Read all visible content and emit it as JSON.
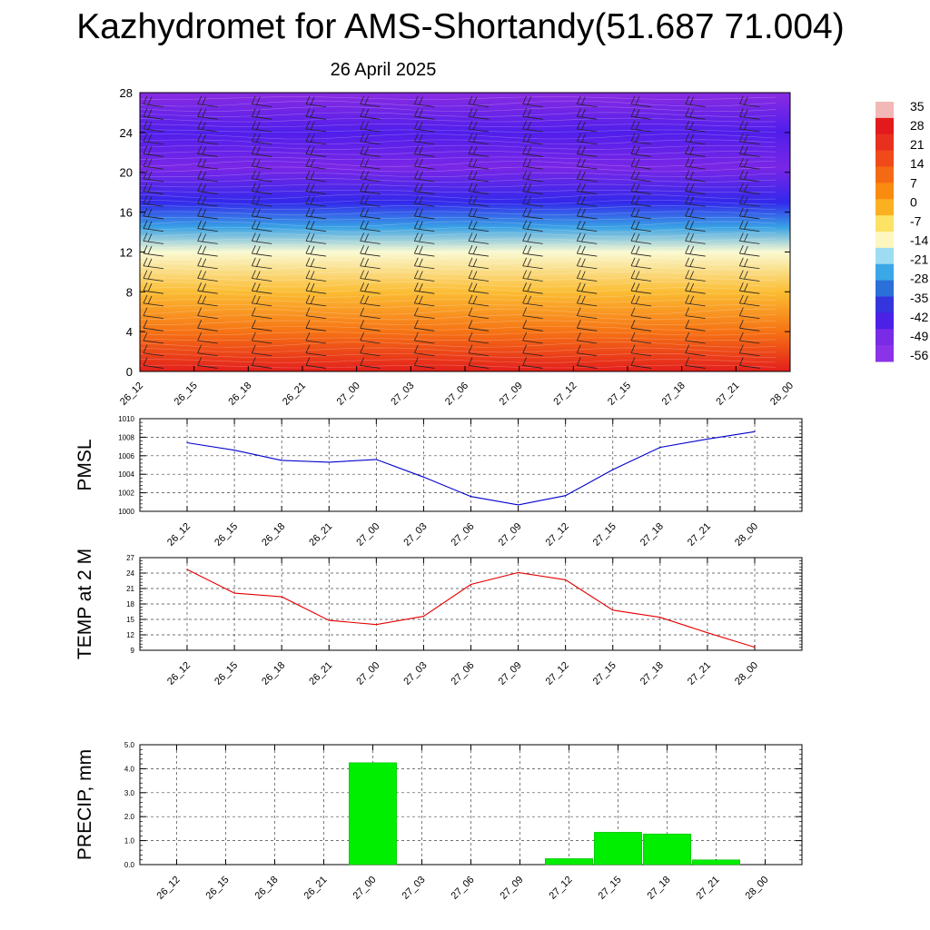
{
  "title": "Kazhydromet for AMS-Shortandy(51.687 71.004)",
  "date": "26 April 2025",
  "colorbar": {
    "labels": [
      "35",
      "28",
      "21",
      "14",
      "7",
      "0",
      "-7",
      "-14",
      "-21",
      "-28",
      "-35",
      "-42",
      "-49",
      "-56"
    ],
    "colors": [
      "#f2b8b8",
      "#e31a1c",
      "#e8301e",
      "#f04a1a",
      "#f46a14",
      "#f98b10",
      "#fbb022",
      "#fce265",
      "#fdf7bf",
      "#9ddcf2",
      "#3aa7e6",
      "#2b6fd8",
      "#3535dd",
      "#4b21e6",
      "#7a2be6",
      "#8a33e8"
    ]
  },
  "chart_data": [
    {
      "type": "heatmap",
      "title": "",
      "xlabel": "",
      "ylabel": "",
      "x": [
        "26_12",
        "26_15",
        "26_18",
        "26_21",
        "27_00",
        "27_03",
        "27_06",
        "27_09",
        "27_12",
        "27_15",
        "27_18",
        "27_21",
        "28_00"
      ],
      "y_ticks": [
        0,
        4,
        8,
        12,
        16,
        20,
        24,
        28
      ],
      "ylim": [
        0,
        28
      ],
      "zlim": [
        -56,
        35
      ],
      "levels_color_order": [
        {
          "y": 0,
          "value": 28
        },
        {
          "y": 4,
          "value": 14
        },
        {
          "y": 8,
          "value": 2
        },
        {
          "y": 12,
          "value": -14
        },
        {
          "y": 14.5,
          "value": -30
        },
        {
          "y": 17,
          "value": -49
        },
        {
          "y": 20.5,
          "value": -56
        },
        {
          "y": 24,
          "value": -52
        },
        {
          "y": 28,
          "value": -60
        }
      ]
    },
    {
      "type": "line",
      "title": "",
      "ylabel": "PMSL",
      "xlabel": "",
      "x": [
        "26_12",
        "26_15",
        "26_18",
        "26_21",
        "27_00",
        "27_03",
        "27_06",
        "27_09",
        "27_12",
        "27_15",
        "27_18",
        "27_21",
        "28_00"
      ],
      "series": [
        {
          "values": [
            1007.4,
            1006.6,
            1005.5,
            1005.3,
            1005.6,
            1003.7,
            1001.6,
            1000.7,
            1001.7,
            1004.5,
            1006.9,
            1007.8,
            1008.6
          ],
          "color": "#0000cc"
        }
      ],
      "ylim": [
        1000,
        1010
      ],
      "yticks": [
        "1000",
        "1002",
        "1004",
        "1006",
        "1008",
        "1010"
      ],
      "grid": true
    },
    {
      "type": "line",
      "title": "",
      "ylabel": "TEMP at 2 M",
      "xlabel": "",
      "x": [
        "26_12",
        "26_15",
        "26_18",
        "26_21",
        "27_00",
        "27_03",
        "27_06",
        "27_09",
        "27_12",
        "27_15",
        "27_18",
        "27_21",
        "28_00"
      ],
      "series": [
        {
          "values": [
            24.7,
            20.1,
            19.4,
            14.8,
            14.0,
            15.6,
            21.8,
            24.1,
            22.7,
            16.8,
            15.4,
            12.4,
            9.6
          ],
          "color": "#e60000"
        }
      ],
      "ylim": [
        9,
        27
      ],
      "yticks": [
        "9",
        "12",
        "15",
        "18",
        "21",
        "24",
        "27"
      ],
      "grid": true
    },
    {
      "type": "bar",
      "title": "",
      "ylabel": "PRECIP, mm",
      "xlabel": "",
      "categories": [
        "26_12",
        "26_15",
        "26_18",
        "26_21",
        "27_00",
        "27_03",
        "27_06",
        "27_09",
        "27_12",
        "27_15",
        "27_18",
        "27_21",
        "28_00"
      ],
      "values": [
        0,
        0,
        0,
        0,
        4.25,
        0,
        0,
        0,
        0.25,
        1.35,
        1.28,
        0.2,
        0
      ],
      "color": "#00ee00",
      "ylim": [
        0,
        5
      ],
      "yticks": [
        "0.0",
        "1.0",
        "2.0",
        "3.0",
        "4.0",
        "5.0"
      ],
      "grid": true
    }
  ]
}
